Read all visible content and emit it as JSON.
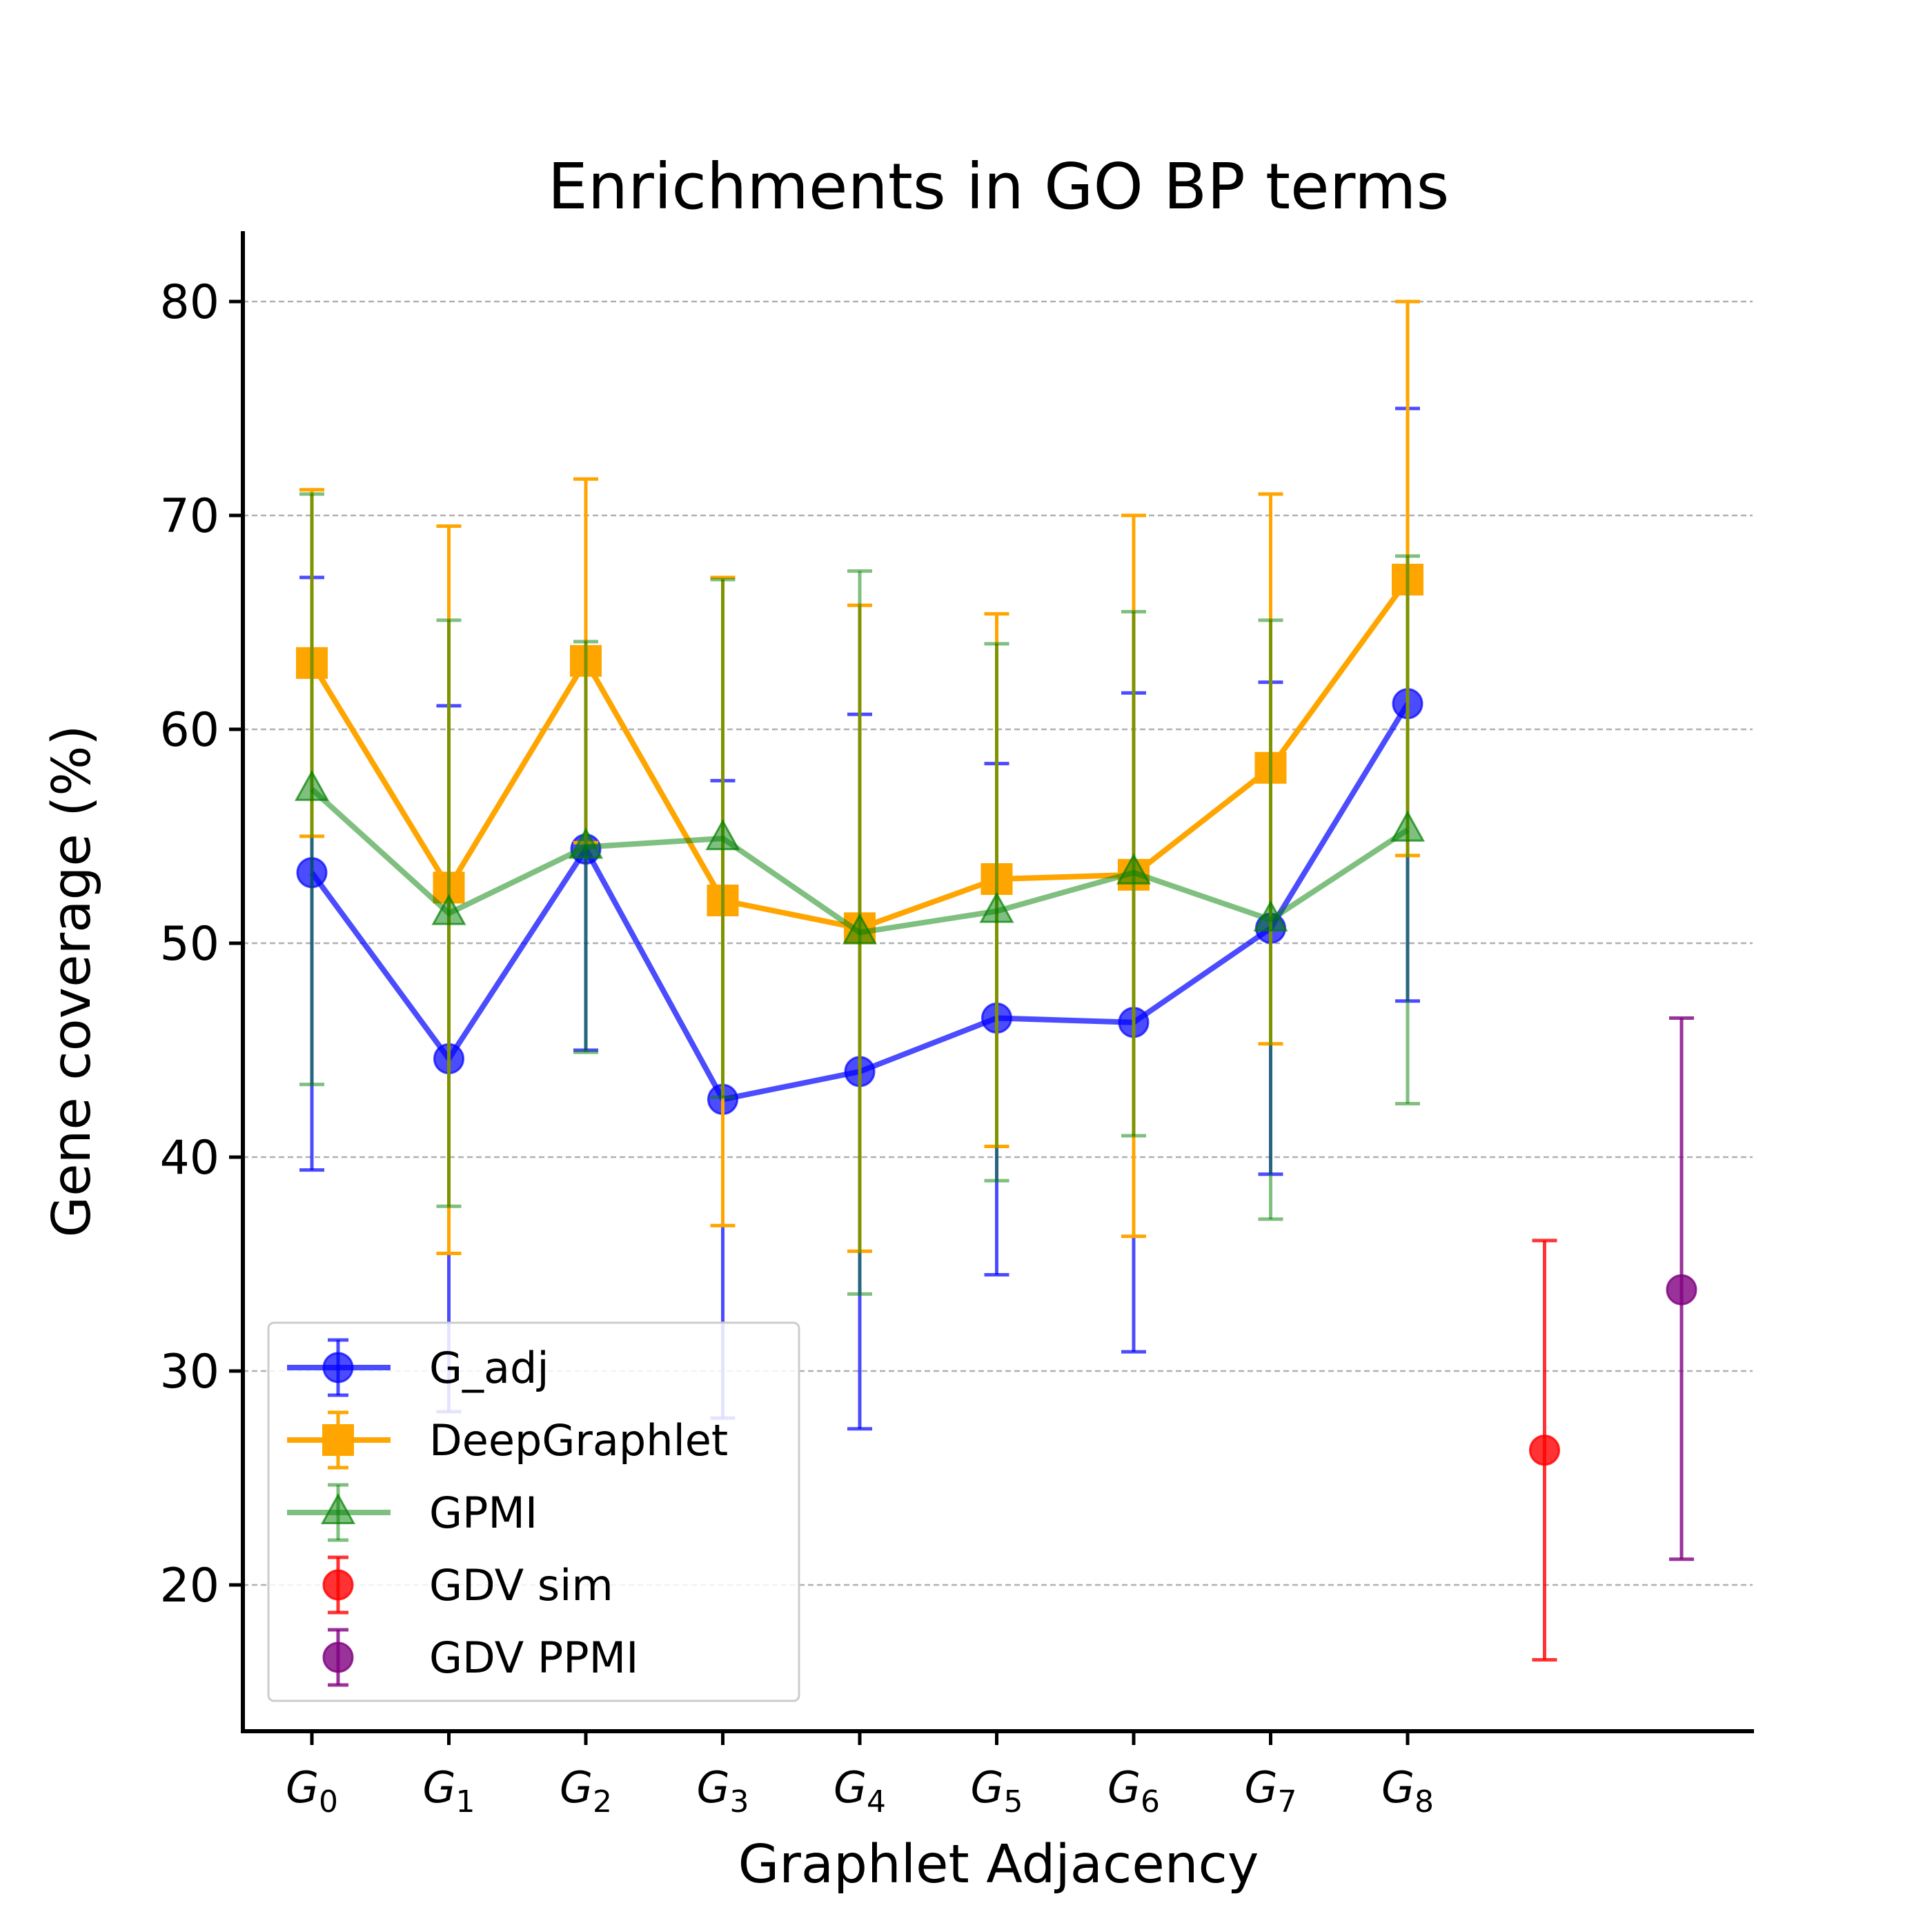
{
  "chart_data": {
    "type": "errorbar-line",
    "title": "Enrichments in GO BP terms",
    "xlabel": "Graphlet Adjacency",
    "ylabel": "Gene coverage (%)",
    "ylim": [
      13.5,
      83.5
    ],
    "yticks": [
      20,
      30,
      40,
      50,
      60,
      70,
      80
    ],
    "grid": "horizontal dashed",
    "legend_position": "lower-left",
    "categories": [
      {
        "base": "G",
        "sub": "0"
      },
      {
        "base": "G",
        "sub": "1"
      },
      {
        "base": "G",
        "sub": "2"
      },
      {
        "base": "G",
        "sub": "3"
      },
      {
        "base": "G",
        "sub": "4"
      },
      {
        "base": "G",
        "sub": "5"
      },
      {
        "base": "G",
        "sub": "6"
      },
      {
        "base": "G",
        "sub": "7"
      },
      {
        "base": "G",
        "sub": "8"
      }
    ],
    "series": [
      {
        "name": "G_adj",
        "color": "#0000ff",
        "marker": "circle",
        "line": true,
        "alpha": 0.7,
        "x": [
          0,
          1,
          2,
          3,
          4,
          5,
          6,
          7,
          8
        ],
        "values": [
          53.3,
          44.6,
          54.4,
          42.7,
          44.0,
          46.5,
          46.3,
          50.7,
          61.2
        ],
        "err_low": [
          39.4,
          28.1,
          45.0,
          27.8,
          27.3,
          34.5,
          30.9,
          39.2,
          47.3
        ],
        "err_high": [
          67.1,
          61.1,
          63.8,
          57.6,
          60.7,
          58.4,
          61.7,
          62.2,
          75.0
        ]
      },
      {
        "name": "DeepGraphlet",
        "color": "#ffa500",
        "marker": "square",
        "line": true,
        "alpha": 1.0,
        "x": [
          0,
          1,
          2,
          3,
          4,
          5,
          6,
          7,
          8
        ],
        "values": [
          63.1,
          52.6,
          63.2,
          52.0,
          50.7,
          53.0,
          53.2,
          58.2,
          67.0
        ],
        "err_low": [
          55.0,
          35.5,
          54.7,
          36.8,
          35.6,
          40.5,
          36.3,
          45.3,
          54.1
        ],
        "err_high": [
          71.2,
          69.5,
          71.7,
          67.1,
          65.8,
          65.4,
          70.0,
          71.0,
          80.0
        ]
      },
      {
        "name": "GPMI",
        "color": "#008000",
        "marker": "triangle",
        "line": true,
        "alpha": 0.5,
        "x": [
          0,
          1,
          2,
          3,
          4,
          5,
          6,
          7,
          8
        ],
        "values": [
          57.2,
          51.4,
          54.5,
          54.9,
          50.5,
          51.5,
          53.3,
          51.1,
          55.3
        ],
        "err_low": [
          43.4,
          37.7,
          44.9,
          42.8,
          33.6,
          38.9,
          41.0,
          37.1,
          42.5
        ],
        "err_high": [
          71.0,
          65.1,
          64.1,
          67.0,
          67.4,
          64.0,
          65.5,
          65.1,
          68.1
        ]
      },
      {
        "name": "GDV sim",
        "color": "#ff0000",
        "marker": "circle",
        "line": false,
        "alpha": 0.8,
        "x": [
          9
        ],
        "values": [
          26.3
        ],
        "err_low": [
          16.5
        ],
        "err_high": [
          36.1
        ]
      },
      {
        "name": "GDV PPMI",
        "color": "#800080",
        "marker": "circle",
        "line": false,
        "alpha": 0.8,
        "x": [
          10
        ],
        "values": [
          33.8
        ],
        "err_low": [
          21.2
        ],
        "err_high": [
          46.5
        ]
      }
    ]
  }
}
